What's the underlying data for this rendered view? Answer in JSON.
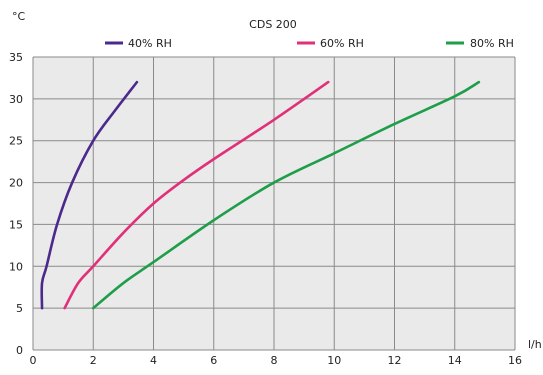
{
  "chart_data": {
    "type": "line",
    "title": "CDS 200",
    "xlabel": "l/h",
    "ylabel": "°C",
    "xlim": [
      0,
      16
    ],
    "ylim": [
      0,
      35
    ],
    "x_ticks": [
      0,
      2,
      4,
      6,
      8,
      10,
      12,
      14,
      16
    ],
    "y_ticks": [
      0,
      5,
      10,
      15,
      20,
      25,
      30,
      35
    ],
    "grid": true,
    "legend_position": "top",
    "series": [
      {
        "name": "40% RH",
        "color": "#4b2a8c",
        "points": [
          [
            0.3,
            5
          ],
          [
            0.3,
            8
          ],
          [
            0.45,
            10
          ],
          [
            0.8,
            15
          ],
          [
            1.3,
            20
          ],
          [
            2.0,
            25
          ],
          [
            2.7,
            28.5
          ],
          [
            3.45,
            32
          ]
        ]
      },
      {
        "name": "60% RH",
        "color": "#e0307a",
        "points": [
          [
            1.05,
            5
          ],
          [
            1.5,
            8
          ],
          [
            2.0,
            10
          ],
          [
            3.0,
            14
          ],
          [
            4.0,
            17.5
          ],
          [
            5.0,
            20.3
          ],
          [
            6.0,
            22.8
          ],
          [
            8.0,
            27.5
          ],
          [
            9.8,
            32
          ]
        ]
      },
      {
        "name": "80% RH",
        "color": "#1f9e4a",
        "points": [
          [
            2.0,
            5
          ],
          [
            3.0,
            8
          ],
          [
            4.0,
            10.5
          ],
          [
            6.0,
            15.5
          ],
          [
            8.0,
            20
          ],
          [
            10.0,
            23.5
          ],
          [
            12.0,
            27
          ],
          [
            14.0,
            30.3
          ],
          [
            14.8,
            32
          ]
        ]
      }
    ]
  }
}
